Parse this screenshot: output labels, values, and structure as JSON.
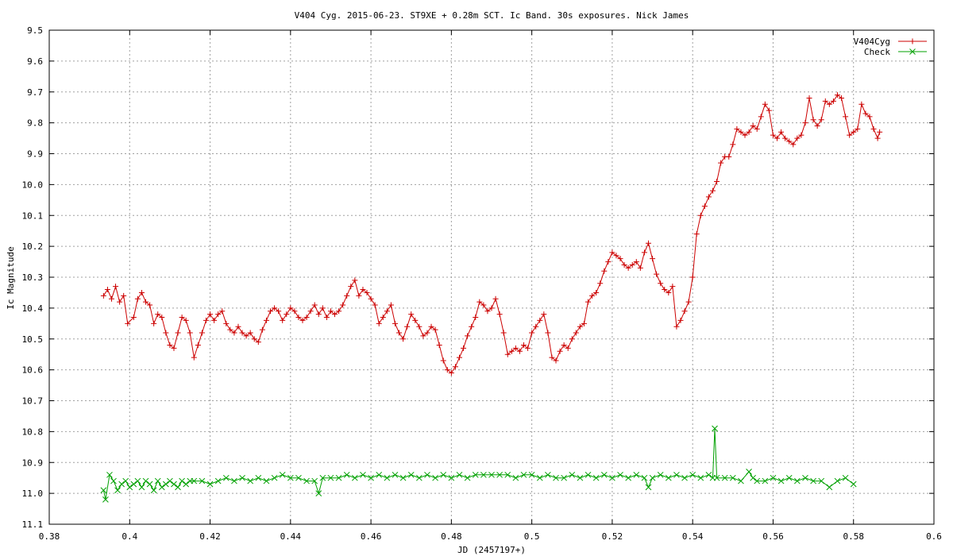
{
  "chart_data": {
    "type": "line",
    "title": "V404 Cyg. 2015-06-23. ST9XE + 0.28m SCT. Ic Band. 30s exposures. Nick James",
    "xlabel": "JD (2457197+)",
    "ylabel": "Ic Magnitude",
    "xlim": [
      0.38,
      0.6
    ],
    "ylim": [
      11.1,
      9.5
    ],
    "y_inverted": true,
    "grid": true,
    "legend_position": "top-right",
    "x_ticks": [
      "0.38",
      "0.4",
      "0.42",
      "0.44",
      "0.46",
      "0.48",
      "0.5",
      "0.52",
      "0.54",
      "0.56",
      "0.58",
      "0.6"
    ],
    "y_ticks": [
      "9.5",
      "9.6",
      "9.7",
      "9.8",
      "9.9",
      "10.0",
      "10.1",
      "10.2",
      "10.3",
      "10.4",
      "10.5",
      "10.6",
      "10.7",
      "10.8",
      "10.9",
      "11.0",
      "11.1"
    ],
    "series": [
      {
        "name": "V404Cyg",
        "color": "#cc0000",
        "marker": "plus",
        "points": [
          [
            0.3935,
            10.36
          ],
          [
            0.3945,
            10.34
          ],
          [
            0.3955,
            10.37
          ],
          [
            0.3965,
            10.33
          ],
          [
            0.3975,
            10.38
          ],
          [
            0.3985,
            10.36
          ],
          [
            0.3995,
            10.45
          ],
          [
            0.401,
            10.43
          ],
          [
            0.402,
            10.37
          ],
          [
            0.403,
            10.35
          ],
          [
            0.404,
            10.38
          ],
          [
            0.405,
            10.39
          ],
          [
            0.406,
            10.45
          ],
          [
            0.407,
            10.42
          ],
          [
            0.408,
            10.43
          ],
          [
            0.409,
            10.48
          ],
          [
            0.41,
            10.52
          ],
          [
            0.411,
            10.53
          ],
          [
            0.412,
            10.48
          ],
          [
            0.413,
            10.43
          ],
          [
            0.414,
            10.44
          ],
          [
            0.415,
            10.48
          ],
          [
            0.416,
            10.56
          ],
          [
            0.417,
            10.52
          ],
          [
            0.418,
            10.48
          ],
          [
            0.419,
            10.44
          ],
          [
            0.42,
            10.42
          ],
          [
            0.421,
            10.44
          ],
          [
            0.422,
            10.42
          ],
          [
            0.423,
            10.41
          ],
          [
            0.424,
            10.45
          ],
          [
            0.425,
            10.47
          ],
          [
            0.426,
            10.48
          ],
          [
            0.427,
            10.46
          ],
          [
            0.428,
            10.48
          ],
          [
            0.429,
            10.49
          ],
          [
            0.43,
            10.48
          ],
          [
            0.431,
            10.5
          ],
          [
            0.432,
            10.51
          ],
          [
            0.433,
            10.47
          ],
          [
            0.434,
            10.44
          ],
          [
            0.435,
            10.41
          ],
          [
            0.436,
            10.4
          ],
          [
            0.437,
            10.41
          ],
          [
            0.438,
            10.44
          ],
          [
            0.439,
            10.42
          ],
          [
            0.44,
            10.4
          ],
          [
            0.441,
            10.41
          ],
          [
            0.442,
            10.43
          ],
          [
            0.443,
            10.44
          ],
          [
            0.444,
            10.43
          ],
          [
            0.445,
            10.41
          ],
          [
            0.446,
            10.39
          ],
          [
            0.447,
            10.42
          ],
          [
            0.448,
            10.4
          ],
          [
            0.449,
            10.43
          ],
          [
            0.45,
            10.41
          ],
          [
            0.451,
            10.42
          ],
          [
            0.452,
            10.41
          ],
          [
            0.453,
            10.39
          ],
          [
            0.454,
            10.36
          ],
          [
            0.455,
            10.33
          ],
          [
            0.456,
            10.31
          ],
          [
            0.457,
            10.36
          ],
          [
            0.458,
            10.34
          ],
          [
            0.459,
            10.35
          ],
          [
            0.46,
            10.37
          ],
          [
            0.461,
            10.39
          ],
          [
            0.462,
            10.45
          ],
          [
            0.463,
            10.43
          ],
          [
            0.464,
            10.41
          ],
          [
            0.465,
            10.39
          ],
          [
            0.466,
            10.45
          ],
          [
            0.467,
            10.48
          ],
          [
            0.468,
            10.5
          ],
          [
            0.469,
            10.46
          ],
          [
            0.47,
            10.42
          ],
          [
            0.471,
            10.44
          ],
          [
            0.472,
            10.46
          ],
          [
            0.473,
            10.49
          ],
          [
            0.474,
            10.48
          ],
          [
            0.475,
            10.46
          ],
          [
            0.476,
            10.47
          ],
          [
            0.477,
            10.52
          ],
          [
            0.478,
            10.57
          ],
          [
            0.479,
            10.6
          ],
          [
            0.48,
            10.61
          ],
          [
            0.481,
            10.59
          ],
          [
            0.482,
            10.56
          ],
          [
            0.483,
            10.53
          ],
          [
            0.484,
            10.49
          ],
          [
            0.485,
            10.46
          ],
          [
            0.486,
            10.43
          ],
          [
            0.487,
            10.38
          ],
          [
            0.488,
            10.39
          ],
          [
            0.489,
            10.41
          ],
          [
            0.49,
            10.4
          ],
          [
            0.491,
            10.37
          ],
          [
            0.492,
            10.42
          ],
          [
            0.493,
            10.48
          ],
          [
            0.494,
            10.55
          ],
          [
            0.495,
            10.54
          ],
          [
            0.496,
            10.53
          ],
          [
            0.497,
            10.54
          ],
          [
            0.498,
            10.52
          ],
          [
            0.499,
            10.53
          ],
          [
            0.5,
            10.48
          ],
          [
            0.501,
            10.46
          ],
          [
            0.502,
            10.44
          ],
          [
            0.503,
            10.42
          ],
          [
            0.504,
            10.48
          ],
          [
            0.505,
            10.56
          ],
          [
            0.506,
            10.57
          ],
          [
            0.507,
            10.54
          ],
          [
            0.508,
            10.52
          ],
          [
            0.509,
            10.53
          ],
          [
            0.51,
            10.5
          ],
          [
            0.511,
            10.48
          ],
          [
            0.512,
            10.46
          ],
          [
            0.513,
            10.45
          ],
          [
            0.514,
            10.38
          ],
          [
            0.515,
            10.36
          ],
          [
            0.516,
            10.35
          ],
          [
            0.517,
            10.32
          ],
          [
            0.518,
            10.28
          ],
          [
            0.519,
            10.25
          ],
          [
            0.52,
            10.22
          ],
          [
            0.521,
            10.23
          ],
          [
            0.522,
            10.24
          ],
          [
            0.523,
            10.26
          ],
          [
            0.524,
            10.27
          ],
          [
            0.525,
            10.26
          ],
          [
            0.526,
            10.25
          ],
          [
            0.527,
            10.27
          ],
          [
            0.528,
            10.22
          ],
          [
            0.529,
            10.19
          ],
          [
            0.53,
            10.24
          ],
          [
            0.531,
            10.29
          ],
          [
            0.532,
            10.32
          ],
          [
            0.533,
            10.34
          ],
          [
            0.534,
            10.35
          ],
          [
            0.535,
            10.33
          ],
          [
            0.536,
            10.46
          ],
          [
            0.537,
            10.44
          ],
          [
            0.538,
            10.41
          ],
          [
            0.539,
            10.38
          ],
          [
            0.54,
            10.3
          ],
          [
            0.541,
            10.16
          ],
          [
            0.542,
            10.1
          ],
          [
            0.543,
            10.07
          ],
          [
            0.544,
            10.04
          ],
          [
            0.545,
            10.02
          ],
          [
            0.546,
            9.99
          ],
          [
            0.547,
            9.93
          ],
          [
            0.548,
            9.91
          ],
          [
            0.549,
            9.91
          ],
          [
            0.55,
            9.87
          ],
          [
            0.551,
            9.82
          ],
          [
            0.552,
            9.83
          ],
          [
            0.553,
            9.84
          ],
          [
            0.554,
            9.83
          ],
          [
            0.555,
            9.81
          ],
          [
            0.556,
            9.82
          ],
          [
            0.557,
            9.78
          ],
          [
            0.558,
            9.74
          ],
          [
            0.559,
            9.76
          ],
          [
            0.56,
            9.84
          ],
          [
            0.561,
            9.85
          ],
          [
            0.562,
            9.83
          ],
          [
            0.563,
            9.85
          ],
          [
            0.564,
            9.86
          ],
          [
            0.565,
            9.87
          ],
          [
            0.566,
            9.85
          ],
          [
            0.567,
            9.84
          ],
          [
            0.568,
            9.8
          ],
          [
            0.569,
            9.72
          ],
          [
            0.57,
            9.79
          ],
          [
            0.571,
            9.81
          ],
          [
            0.572,
            9.79
          ],
          [
            0.573,
            9.73
          ],
          [
            0.574,
            9.74
          ],
          [
            0.575,
            9.73
          ],
          [
            0.576,
            9.71
          ],
          [
            0.577,
            9.72
          ],
          [
            0.578,
            9.78
          ],
          [
            0.579,
            9.84
          ],
          [
            0.58,
            9.83
          ],
          [
            0.581,
            9.82
          ],
          [
            0.582,
            9.74
          ],
          [
            0.583,
            9.77
          ],
          [
            0.584,
            9.78
          ],
          [
            0.585,
            9.82
          ],
          [
            0.586,
            9.85
          ],
          [
            0.5865,
            9.83
          ]
        ]
      },
      {
        "name": "Check",
        "color": "#00a000",
        "marker": "x",
        "points": [
          [
            0.3935,
            10.99
          ],
          [
            0.394,
            11.02
          ],
          [
            0.395,
            10.94
          ],
          [
            0.396,
            10.96
          ],
          [
            0.397,
            10.99
          ],
          [
            0.398,
            10.97
          ],
          [
            0.399,
            10.96
          ],
          [
            0.4,
            10.98
          ],
          [
            0.401,
            10.97
          ],
          [
            0.402,
            10.96
          ],
          [
            0.403,
            10.98
          ],
          [
            0.404,
            10.96
          ],
          [
            0.405,
            10.97
          ],
          [
            0.406,
            10.99
          ],
          [
            0.407,
            10.96
          ],
          [
            0.408,
            10.98
          ],
          [
            0.409,
            10.97
          ],
          [
            0.41,
            10.96
          ],
          [
            0.411,
            10.97
          ],
          [
            0.412,
            10.98
          ],
          [
            0.413,
            10.96
          ],
          [
            0.414,
            10.97
          ],
          [
            0.415,
            10.96
          ],
          [
            0.416,
            10.96
          ],
          [
            0.418,
            10.96
          ],
          [
            0.42,
            10.97
          ],
          [
            0.422,
            10.96
          ],
          [
            0.424,
            10.95
          ],
          [
            0.426,
            10.96
          ],
          [
            0.428,
            10.95
          ],
          [
            0.43,
            10.96
          ],
          [
            0.432,
            10.95
          ],
          [
            0.434,
            10.96
          ],
          [
            0.436,
            10.95
          ],
          [
            0.438,
            10.94
          ],
          [
            0.44,
            10.95
          ],
          [
            0.442,
            10.95
          ],
          [
            0.444,
            10.96
          ],
          [
            0.446,
            10.96
          ],
          [
            0.447,
            11.0
          ],
          [
            0.448,
            10.95
          ],
          [
            0.45,
            10.95
          ],
          [
            0.452,
            10.95
          ],
          [
            0.454,
            10.94
          ],
          [
            0.456,
            10.95
          ],
          [
            0.458,
            10.94
          ],
          [
            0.46,
            10.95
          ],
          [
            0.462,
            10.94
          ],
          [
            0.464,
            10.95
          ],
          [
            0.466,
            10.94
          ],
          [
            0.468,
            10.95
          ],
          [
            0.47,
            10.94
          ],
          [
            0.472,
            10.95
          ],
          [
            0.474,
            10.94
          ],
          [
            0.476,
            10.95
          ],
          [
            0.478,
            10.94
          ],
          [
            0.48,
            10.95
          ],
          [
            0.482,
            10.94
          ],
          [
            0.484,
            10.95
          ],
          [
            0.486,
            10.94
          ],
          [
            0.488,
            10.94
          ],
          [
            0.49,
            10.94
          ],
          [
            0.492,
            10.94
          ],
          [
            0.494,
            10.94
          ],
          [
            0.496,
            10.95
          ],
          [
            0.498,
            10.94
          ],
          [
            0.5,
            10.94
          ],
          [
            0.502,
            10.95
          ],
          [
            0.504,
            10.94
          ],
          [
            0.506,
            10.95
          ],
          [
            0.508,
            10.95
          ],
          [
            0.51,
            10.94
          ],
          [
            0.512,
            10.95
          ],
          [
            0.514,
            10.94
          ],
          [
            0.516,
            10.95
          ],
          [
            0.518,
            10.94
          ],
          [
            0.52,
            10.95
          ],
          [
            0.522,
            10.94
          ],
          [
            0.524,
            10.95
          ],
          [
            0.526,
            10.94
          ],
          [
            0.528,
            10.95
          ],
          [
            0.529,
            10.98
          ],
          [
            0.53,
            10.95
          ],
          [
            0.532,
            10.94
          ],
          [
            0.534,
            10.95
          ],
          [
            0.536,
            10.94
          ],
          [
            0.538,
            10.95
          ],
          [
            0.54,
            10.94
          ],
          [
            0.542,
            10.95
          ],
          [
            0.544,
            10.94
          ],
          [
            0.545,
            10.95
          ],
          [
            0.5455,
            10.79
          ],
          [
            0.546,
            10.95
          ],
          [
            0.548,
            10.95
          ],
          [
            0.55,
            10.95
          ],
          [
            0.552,
            10.96
          ],
          [
            0.554,
            10.93
          ],
          [
            0.555,
            10.95
          ],
          [
            0.556,
            10.96
          ],
          [
            0.558,
            10.96
          ],
          [
            0.56,
            10.95
          ],
          [
            0.562,
            10.96
          ],
          [
            0.564,
            10.95
          ],
          [
            0.566,
            10.96
          ],
          [
            0.568,
            10.95
          ],
          [
            0.57,
            10.96
          ],
          [
            0.572,
            10.96
          ],
          [
            0.574,
            10.98
          ],
          [
            0.576,
            10.96
          ],
          [
            0.578,
            10.95
          ],
          [
            0.58,
            10.97
          ]
        ]
      }
    ]
  }
}
